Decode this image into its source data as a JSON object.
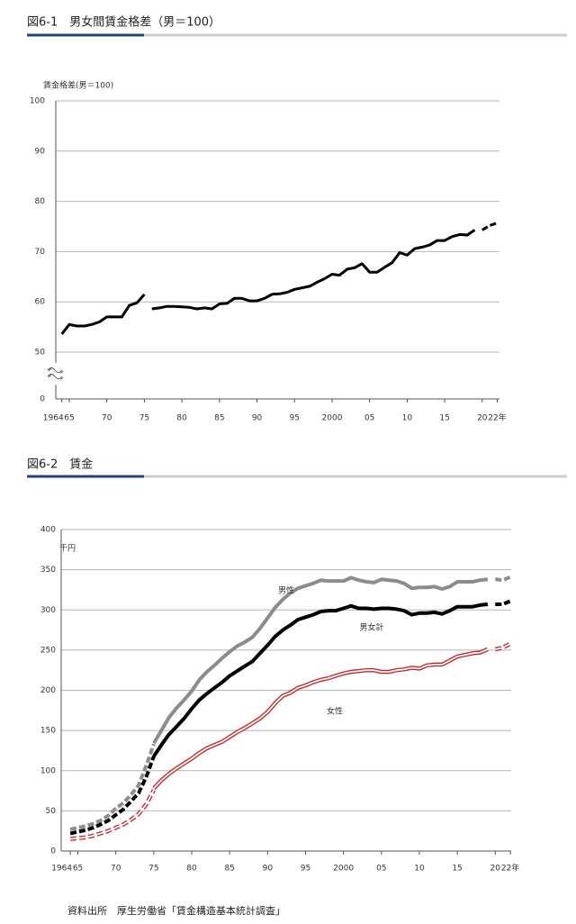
{
  "chart_data": [
    {
      "type": "line",
      "title": "図6-1　男女間賃金格差（男＝100）",
      "y_label": "賃金格差(男＝100)",
      "xlim": [
        1963.2,
        2022.3
      ],
      "xticks": [
        1964,
        {
          "value": 1965,
          "label": "65"
        },
        {
          "value": 1970,
          "label": "70"
        },
        {
          "value": 1975,
          "label": "75"
        },
        {
          "value": 1980,
          "label": "80"
        },
        {
          "value": 1985,
          "label": "85"
        },
        {
          "value": 1990,
          "label": "90"
        },
        {
          "value": 1995,
          "label": "95"
        },
        2000,
        {
          "value": 2005,
          "label": "05"
        },
        {
          "value": 2010,
          "label": "10"
        },
        {
          "value": 2015,
          "label": "15"
        },
        {
          "value": 2020,
          "label": "20"
        },
        {
          "value": 2022,
          "label": "22年"
        }
      ],
      "ylim": [
        0,
        100
      ],
      "yticks": [
        0,
        50,
        60,
        70,
        80,
        90,
        100
      ],
      "axis_break": [
        0,
        50
      ],
      "grid": true,
      "series": [
        {
          "color": "#000000",
          "dashed": false,
          "x": [
            1964,
            1965,
            1966,
            1967,
            1968,
            1969,
            1970,
            1971,
            1972,
            1973,
            1974,
            1975
          ],
          "values": [
            53.6,
            55.5,
            55.2,
            55.2,
            55.5,
            56.0,
            57.0,
            57.0,
            57.0,
            59.3,
            59.8,
            61.5
          ]
        },
        {
          "color": "#000000",
          "dashed": false,
          "x": [
            1976,
            1977,
            1978,
            1979,
            1980,
            1981,
            1982,
            1983,
            1984,
            1985,
            1986,
            1987,
            1988,
            1989,
            1990,
            1991,
            1992,
            1993,
            1994,
            1995,
            1996,
            1997,
            1998,
            1999,
            2000,
            2001,
            2002,
            2003,
            2004,
            2005,
            2006,
            2007,
            2008,
            2009,
            2010,
            2011,
            2012,
            2013,
            2014,
            2015,
            2016,
            2017,
            2018,
            2019
          ],
          "values": [
            58.6,
            58.8,
            59.1,
            59.1,
            59.0,
            58.9,
            58.6,
            58.8,
            58.6,
            59.6,
            59.7,
            60.7,
            60.7,
            60.2,
            60.2,
            60.7,
            61.5,
            61.6,
            61.9,
            62.5,
            62.8,
            63.1,
            63.9,
            64.6,
            65.5,
            65.3,
            66.5,
            66.8,
            67.6,
            65.9,
            65.9,
            66.9,
            67.8,
            69.8,
            69.3,
            70.6,
            70.9,
            71.3,
            72.2,
            72.2,
            73.0,
            73.4,
            73.3,
            74.3
          ]
        },
        {
          "color": "#000000",
          "dashed": true,
          "x": [
            2020,
            2021,
            2022
          ],
          "values": [
            74.3,
            75.2,
            75.7
          ]
        }
      ]
    },
    {
      "type": "line",
      "title": "図6-2　賃金",
      "y_label": "千円",
      "xlim": [
        1962.8,
        2022.1
      ],
      "xticks": [
        1964,
        {
          "value": 1965,
          "label": "65"
        },
        {
          "value": 1970,
          "label": "70"
        },
        {
          "value": 1975,
          "label": "75"
        },
        {
          "value": 1980,
          "label": "80"
        },
        {
          "value": 1985,
          "label": "85"
        },
        {
          "value": 1990,
          "label": "90"
        },
        {
          "value": 1995,
          "label": "95"
        },
        2000,
        {
          "value": 2005,
          "label": "05"
        },
        {
          "value": 2010,
          "label": "10"
        },
        {
          "value": 2015,
          "label": "15"
        },
        {
          "value": 2020,
          "label": "20"
        },
        {
          "value": 2022,
          "label": "22年"
        }
      ],
      "ylim": [
        0,
        400
      ],
      "yticks": [
        0,
        50,
        100,
        150,
        200,
        250,
        300,
        350,
        400
      ],
      "grid": true,
      "annotations": [
        "男性",
        "男女計",
        "女性"
      ],
      "series": [
        {
          "color": "#8c8c8c",
          "dashed": true,
          "hollow": false,
          "x": [
            1964,
            1965,
            1966,
            1967,
            1968,
            1969,
            1970,
            1971,
            1972,
            1973,
            1974,
            1975
          ],
          "values": [
            27,
            29,
            31,
            34,
            38,
            44,
            53,
            60,
            70,
            82,
            106,
            133
          ]
        },
        {
          "color": "#8c8c8c",
          "dashed": false,
          "hollow": false,
          "x": [
            1975,
            1976,
            1977,
            1978,
            1979,
            1980,
            1981,
            1982,
            1983,
            1984,
            1985,
            1986,
            1987,
            1988,
            1989,
            1990,
            1991,
            1992,
            1993,
            1994,
            1995,
            1996,
            1997,
            1998,
            1999,
            2000,
            2001,
            2002,
            2003,
            2004,
            2005,
            2006,
            2007,
            2008,
            2009,
            2010,
            2011,
            2012,
            2013,
            2014,
            2015,
            2016,
            2017,
            2018,
            2019
          ],
          "values": [
            134,
            150,
            166,
            178,
            188,
            199,
            213,
            223,
            231,
            240,
            248,
            255,
            260,
            266,
            277,
            290,
            303,
            313,
            321,
            327,
            330,
            333,
            337,
            336,
            336,
            336,
            340,
            337,
            335,
            334,
            338,
            337,
            336,
            333,
            327,
            328,
            328,
            329,
            326,
            329,
            335,
            335,
            335,
            337,
            338
          ]
        },
        {
          "color": "#8c8c8c",
          "dashed": true,
          "hollow": false,
          "x": [
            2020,
            2021,
            2022
          ],
          "values": [
            338,
            337,
            341
          ]
        },
        {
          "color": "#000000",
          "dashed": true,
          "hollow": false,
          "x": [
            1964,
            1965,
            1966,
            1967,
            1968,
            1969,
            1970,
            1971,
            1972,
            1973,
            1974,
            1975
          ],
          "values": [
            22,
            24,
            26,
            29,
            33,
            38,
            45,
            52,
            62,
            72,
            92,
            118
          ]
        },
        {
          "color": "#000000",
          "dashed": false,
          "hollow": false,
          "x": [
            1975,
            1976,
            1977,
            1978,
            1979,
            1980,
            1981,
            1982,
            1983,
            1984,
            1985,
            1986,
            1987,
            1988,
            1989,
            1990,
            1991,
            1992,
            1993,
            1994,
            1995,
            1996,
            1997,
            1998,
            1999,
            2000,
            2001,
            2002,
            2003,
            2004,
            2005,
            2006,
            2007,
            2008,
            2009,
            2010,
            2011,
            2012,
            2013,
            2014,
            2015,
            2016,
            2017,
            2018,
            2019
          ],
          "values": [
            118,
            132,
            145,
            155,
            165,
            177,
            188,
            196,
            203,
            210,
            218,
            224,
            230,
            236,
            246,
            256,
            267,
            275,
            281,
            288,
            291,
            294,
            298,
            299,
            299,
            302,
            305,
            302,
            302,
            301,
            302,
            302,
            301,
            299,
            294,
            296,
            296,
            297,
            295,
            299,
            304,
            304,
            304,
            306,
            307
          ]
        },
        {
          "color": "#000000",
          "dashed": true,
          "hollow": false,
          "x": [
            2020,
            2021,
            2022
          ],
          "values": [
            307,
            307,
            311
          ]
        },
        {
          "color": "#c0282d",
          "dashed": true,
          "hollow": true,
          "x": [
            1964,
            1965,
            1966,
            1967,
            1968,
            1969,
            1970,
            1971,
            1972,
            1973,
            1974,
            1975
          ],
          "values": [
            15,
            16,
            17,
            19,
            22,
            25,
            29,
            33,
            39,
            46,
            58,
            76
          ]
        },
        {
          "color": "#c0282d",
          "dashed": false,
          "hollow": true,
          "x": [
            1975,
            1976,
            1977,
            1978,
            1979,
            1980,
            1981,
            1982,
            1983,
            1984,
            1985,
            1986,
            1987,
            1988,
            1989,
            1990,
            1991,
            1992,
            1993,
            1994,
            1995,
            1996,
            1997,
            1998,
            1999,
            2000,
            2001,
            2002,
            2003,
            2004,
            2005,
            2006,
            2007,
            2008,
            2009,
            2010,
            2011,
            2012,
            2013,
            2014,
            2015,
            2016,
            2017,
            2018,
            2019
          ],
          "values": [
            78,
            88,
            96,
            103,
            109,
            115,
            122,
            128,
            132,
            136,
            142,
            148,
            153,
            159,
            165,
            173,
            184,
            193,
            197,
            203,
            206,
            210,
            213,
            215,
            218,
            221,
            223,
            224,
            225,
            225,
            223,
            223,
            225,
            226,
            228,
            227,
            231,
            232,
            232,
            237,
            242,
            244,
            246,
            247,
            251
          ]
        },
        {
          "color": "#c0282d",
          "dashed": true,
          "hollow": true,
          "x": [
            2020,
            2021,
            2022
          ],
          "values": [
            251,
            253,
            258
          ]
        }
      ]
    }
  ],
  "source": "資料出所　厚生労働省「賃金構造基本統計調査」"
}
